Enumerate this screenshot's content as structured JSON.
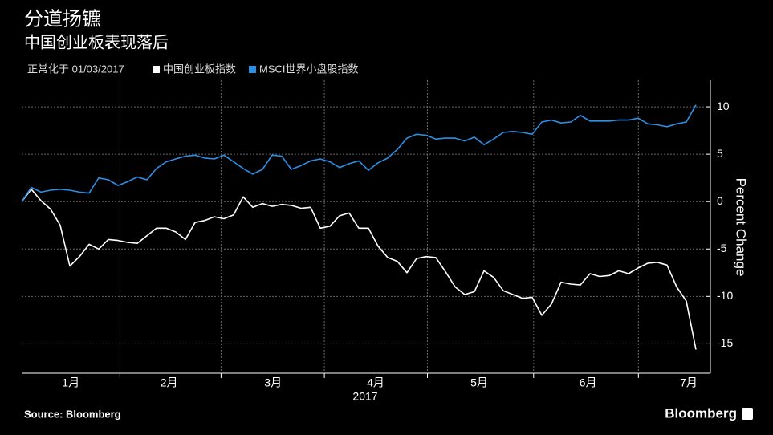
{
  "chart_data": {
    "type": "line",
    "title": "分道扬镳",
    "subtitle": "中国创业板表现落后",
    "note": "正常化于 01/03/2017",
    "y_label": "Percent Change",
    "x_label": "2017",
    "source": "Source: Bloomberg",
    "brand": "Bloomberg",
    "xlim": [
      0,
      70
    ],
    "xticks": [
      {
        "value": 5.1,
        "label": "1月"
      },
      {
        "value": 15.3,
        "label": "2月"
      },
      {
        "value": 26.1,
        "label": "3月"
      },
      {
        "value": 36.75,
        "label": "4月"
      },
      {
        "value": 47.5,
        "label": "5月"
      },
      {
        "value": 58.8,
        "label": "6月"
      },
      {
        "value": 69.25,
        "label": "7月"
      }
    ],
    "ylim": [
      -18.1,
      12.8
    ],
    "yticks": [
      10,
      5,
      0,
      -5,
      -10,
      -15
    ],
    "grid": true,
    "series": [
      {
        "name": "中国创业板指数",
        "color": "#ffffff",
        "values": [
          0,
          1.3,
          0.1,
          -0.8,
          -2.5,
          -6.8,
          -5.8,
          -4.5,
          -5.0,
          -4.0,
          -4.1,
          -4.3,
          -4.4,
          -3.6,
          -2.8,
          -2.8,
          -3.2,
          -4.0,
          -2.2,
          -2.0,
          -1.6,
          -1.8,
          -1.4,
          0.5,
          -0.6,
          -0.2,
          -0.5,
          -0.3,
          -0.4,
          -0.7,
          -0.6,
          -2.8,
          -2.6,
          -1.5,
          -1.2,
          -2.8,
          -2.8,
          -4.7,
          -5.9,
          -6.3,
          -7.5,
          -6.0,
          -5.8,
          -5.9,
          -7.4,
          -9.0,
          -9.8,
          -9.5,
          -7.3,
          -8.0,
          -9.4,
          -9.8,
          -10.2,
          -10.1,
          -12.0,
          -10.8,
          -8.5,
          -8.7,
          -8.8,
          -7.6,
          -7.9,
          -7.8,
          -7.3,
          -7.6,
          -7.0,
          -6.5,
          -6.4,
          -6.7,
          -9.0,
          -10.5,
          -15.6
        ]
      },
      {
        "name": "MSCI世界小盘股指数",
        "color": "#2d8fe6",
        "values": [
          0,
          1.5,
          1.0,
          1.2,
          1.3,
          1.2,
          1.0,
          0.9,
          2.5,
          2.3,
          1.7,
          2.1,
          2.6,
          2.3,
          3.5,
          4.2,
          4.5,
          4.8,
          4.9,
          4.6,
          4.5,
          4.9,
          4.2,
          3.5,
          2.9,
          3.4,
          4.9,
          4.8,
          3.4,
          3.8,
          4.3,
          4.5,
          4.2,
          3.6,
          4.0,
          4.3,
          3.3,
          4.1,
          4.6,
          5.5,
          6.7,
          7.1,
          7.0,
          6.6,
          6.7,
          6.7,
          6.4,
          6.8,
          6.0,
          6.6,
          7.3,
          7.4,
          7.3,
          7.1,
          8.4,
          8.6,
          8.3,
          8.4,
          9.1,
          8.5,
          8.5,
          8.5,
          8.6,
          8.6,
          8.8,
          8.2,
          8.1,
          7.9,
          8.2,
          8.4,
          10.2
        ]
      }
    ]
  }
}
